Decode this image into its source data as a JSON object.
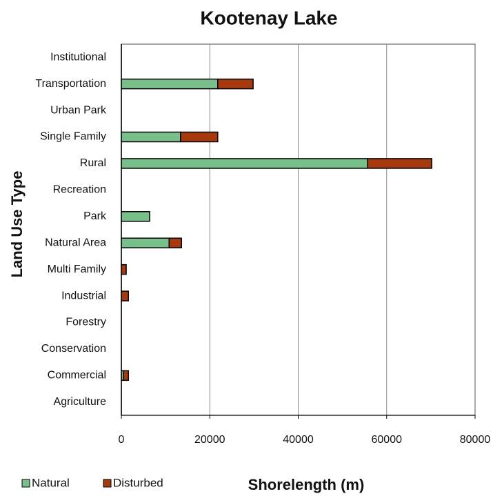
{
  "chart_data": {
    "type": "stacked_barh",
    "title": "Kootenay Lake",
    "xlabel": "Shorelength (m)",
    "ylabel": "Land Use Type",
    "categories": [
      "Agriculture",
      "Commercial",
      "Conservation",
      "Forestry",
      "Industrial",
      "Multi Family",
      "Natural Area",
      "Park",
      "Recreation",
      "Rural",
      "Single Family",
      "Urban Park",
      "Transportation",
      "Institutional"
    ],
    "series": [
      {
        "name": "Natural",
        "color": "#77c08a",
        "values": [
          0,
          500,
          0,
          0,
          0,
          0,
          10800,
          6400,
          0,
          55700,
          13400,
          0,
          21800,
          0
        ]
      },
      {
        "name": "Disturbed",
        "color": "#a8390c",
        "values": [
          0,
          1100,
          0,
          0,
          1600,
          1100,
          2800,
          0,
          0,
          14500,
          8400,
          0,
          8000,
          0
        ]
      }
    ],
    "xlim": [
      0,
      80000
    ],
    "xticks": [
      0,
      20000,
      40000,
      60000,
      80000
    ],
    "grid": true,
    "legend": "bottom-left"
  }
}
